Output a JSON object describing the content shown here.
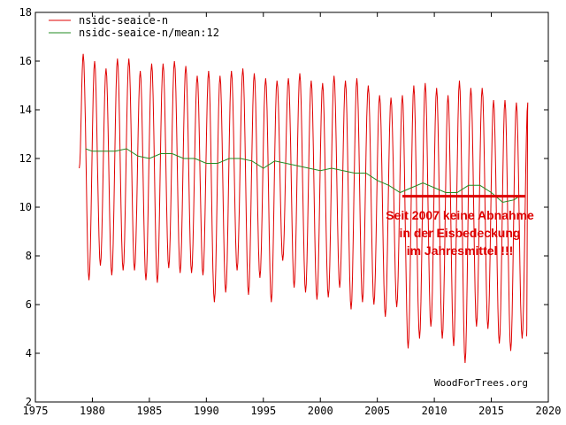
{
  "chart_data": {
    "type": "line",
    "xlim": [
      1975,
      2020
    ],
    "ylim": [
      2,
      18
    ],
    "xticks": [
      1975,
      1980,
      1985,
      1990,
      1995,
      2000,
      2005,
      2010,
      2015,
      2020
    ],
    "yticks": [
      2,
      4,
      6,
      8,
      10,
      12,
      14,
      16,
      18
    ],
    "xtick_labels": [
      "1975",
      "1980",
      "1985",
      "1990",
      "1995",
      "2000",
      "2005",
      "2010",
      "2015",
      "2020"
    ],
    "ytick_labels": [
      "2",
      "4",
      "6",
      "8",
      "10",
      "12",
      "14",
      "16",
      "18"
    ],
    "grid": false,
    "legend_position": "top-left",
    "series": [
      {
        "name": "nsidc-seaice-n",
        "color": "#e00000",
        "x_start": 1978.85,
        "x_end": 2018.1,
        "annual_max": [
          {
            "year": 1979,
            "value": 16.3
          },
          {
            "year": 1980,
            "value": 16.0
          },
          {
            "year": 1981,
            "value": 15.7
          },
          {
            "year": 1982,
            "value": 16.1
          },
          {
            "year": 1983,
            "value": 16.1
          },
          {
            "year": 1984,
            "value": 15.6
          },
          {
            "year": 1985,
            "value": 15.9
          },
          {
            "year": 1986,
            "value": 15.9
          },
          {
            "year": 1987,
            "value": 16.0
          },
          {
            "year": 1988,
            "value": 15.8
          },
          {
            "year": 1989,
            "value": 15.4
          },
          {
            "year": 1990,
            "value": 15.6
          },
          {
            "year": 1991,
            "value": 15.4
          },
          {
            "year": 1992,
            "value": 15.6
          },
          {
            "year": 1993,
            "value": 15.7
          },
          {
            "year": 1994,
            "value": 15.5
          },
          {
            "year": 1995,
            "value": 15.3
          },
          {
            "year": 1996,
            "value": 15.2
          },
          {
            "year": 1997,
            "value": 15.3
          },
          {
            "year": 1998,
            "value": 15.5
          },
          {
            "year": 1999,
            "value": 15.2
          },
          {
            "year": 2000,
            "value": 15.1
          },
          {
            "year": 2001,
            "value": 15.4
          },
          {
            "year": 2002,
            "value": 15.2
          },
          {
            "year": 2003,
            "value": 15.3
          },
          {
            "year": 2004,
            "value": 15.0
          },
          {
            "year": 2005,
            "value": 14.6
          },
          {
            "year": 2006,
            "value": 14.5
          },
          {
            "year": 2007,
            "value": 14.6
          },
          {
            "year": 2008,
            "value": 15.0
          },
          {
            "year": 2009,
            "value": 15.1
          },
          {
            "year": 2010,
            "value": 14.9
          },
          {
            "year": 2011,
            "value": 14.6
          },
          {
            "year": 2012,
            "value": 15.2
          },
          {
            "year": 2013,
            "value": 14.9
          },
          {
            "year": 2014,
            "value": 14.9
          },
          {
            "year": 2015,
            "value": 14.4
          },
          {
            "year": 2016,
            "value": 14.4
          },
          {
            "year": 2017,
            "value": 14.3
          },
          {
            "year": 2018,
            "value": 14.3
          }
        ],
        "annual_min": [
          {
            "year": 1979,
            "value": 7.0
          },
          {
            "year": 1980,
            "value": 7.6
          },
          {
            "year": 1981,
            "value": 7.2
          },
          {
            "year": 1982,
            "value": 7.4
          },
          {
            "year": 1983,
            "value": 7.4
          },
          {
            "year": 1984,
            "value": 7.0
          },
          {
            "year": 1985,
            "value": 6.9
          },
          {
            "year": 1986,
            "value": 7.5
          },
          {
            "year": 1987,
            "value": 7.3
          },
          {
            "year": 1988,
            "value": 7.3
          },
          {
            "year": 1989,
            "value": 7.2
          },
          {
            "year": 1990,
            "value": 6.1
          },
          {
            "year": 1991,
            "value": 6.5
          },
          {
            "year": 1992,
            "value": 7.4
          },
          {
            "year": 1993,
            "value": 6.4
          },
          {
            "year": 1994,
            "value": 7.1
          },
          {
            "year": 1995,
            "value": 6.1
          },
          {
            "year": 1996,
            "value": 7.8
          },
          {
            "year": 1997,
            "value": 6.7
          },
          {
            "year": 1998,
            "value": 6.5
          },
          {
            "year": 1999,
            "value": 6.2
          },
          {
            "year": 2000,
            "value": 6.3
          },
          {
            "year": 2001,
            "value": 6.7
          },
          {
            "year": 2002,
            "value": 5.8
          },
          {
            "year": 2003,
            "value": 6.1
          },
          {
            "year": 2004,
            "value": 6.0
          },
          {
            "year": 2005,
            "value": 5.5
          },
          {
            "year": 2006,
            "value": 5.9
          },
          {
            "year": 2007,
            "value": 4.2
          },
          {
            "year": 2008,
            "value": 4.6
          },
          {
            "year": 2009,
            "value": 5.1
          },
          {
            "year": 2010,
            "value": 4.6
          },
          {
            "year": 2011,
            "value": 4.3
          },
          {
            "year": 2012,
            "value": 3.6
          },
          {
            "year": 2013,
            "value": 5.1
          },
          {
            "year": 2014,
            "value": 5.0
          },
          {
            "year": 2015,
            "value": 4.4
          },
          {
            "year": 2016,
            "value": 4.1
          },
          {
            "year": 2017,
            "value": 4.6
          }
        ]
      },
      {
        "name": "nsidc-seaice-n/mean:12",
        "color": "#228b22",
        "x": [
          1979.4,
          1980,
          1981,
          1982,
          1983,
          1984,
          1985,
          1986,
          1987,
          1988,
          1989,
          1990,
          1991,
          1992,
          1993,
          1994,
          1995,
          1996,
          1997,
          1998,
          1999,
          2000,
          2001,
          2002,
          2003,
          2004,
          2005,
          2006,
          2007,
          2008,
          2009,
          2010,
          2011,
          2012,
          2013,
          2014,
          2015,
          2016,
          2017,
          2017.6
        ],
        "y": [
          12.4,
          12.3,
          12.3,
          12.3,
          12.4,
          12.1,
          12.0,
          12.2,
          12.2,
          12.0,
          12.0,
          11.8,
          11.8,
          12.0,
          12.0,
          11.9,
          11.6,
          11.9,
          11.8,
          11.7,
          11.6,
          11.5,
          11.6,
          11.5,
          11.4,
          11.4,
          11.1,
          10.9,
          10.6,
          10.8,
          11.0,
          10.8,
          10.6,
          10.6,
          10.9,
          10.9,
          10.6,
          10.2,
          10.3,
          10.5
        ]
      }
    ],
    "annotation": {
      "lines": [
        "Seit 2007 keine Abnahme",
        "in der Eisbedeckung",
        "im Jahresmittel !!!"
      ],
      "color": "#dd0000",
      "line_x": [
        2007.2,
        2018.0
      ],
      "line_y": 10.45
    },
    "credit": "WoodForTrees.org"
  }
}
